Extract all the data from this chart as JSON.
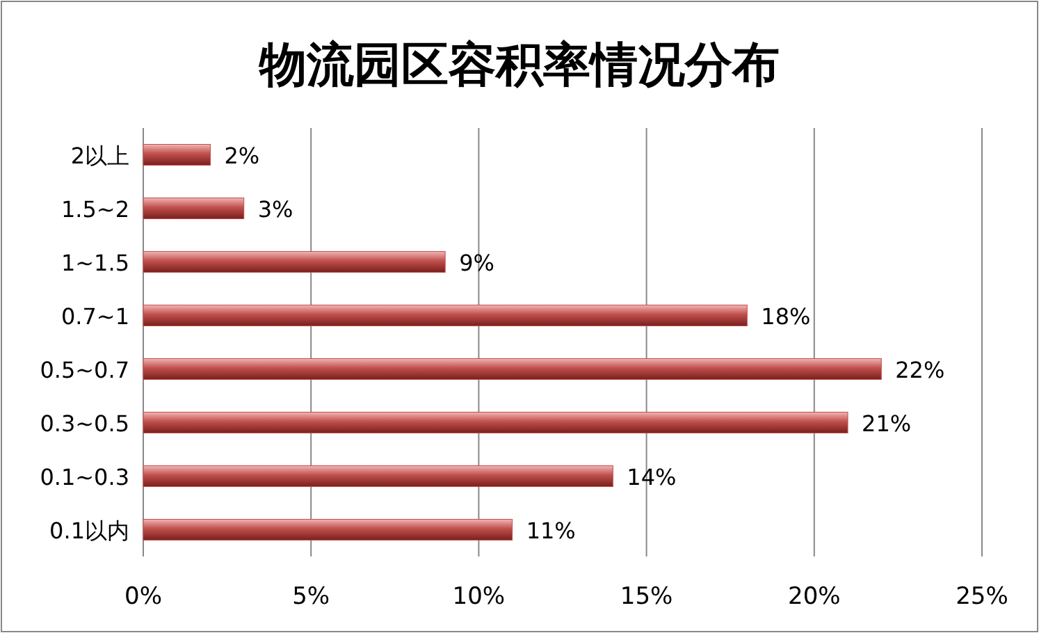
{
  "chart_data": {
    "type": "bar",
    "title": "物流园区容积率情况分布",
    "orientation": "horizontal",
    "categories": [
      "2以上",
      "1.5~2",
      "1~1.5",
      "0.7~1",
      "0.5~0.7",
      "0.3~0.5",
      "0.1~0.3",
      "0.1以内"
    ],
    "values": [
      2,
      3,
      9,
      18,
      22,
      21,
      14,
      11
    ],
    "value_labels": [
      "2%",
      "3%",
      "9%",
      "18%",
      "22%",
      "21%",
      "14%",
      "11%"
    ],
    "color": "#c0504d",
    "xlim": [
      0,
      25
    ],
    "xticks": [
      {
        "value": 0,
        "label": "0%"
      },
      {
        "value": 5,
        "label": "5%"
      },
      {
        "value": 10,
        "label": "10%"
      },
      {
        "value": 15,
        "label": "15%"
      },
      {
        "value": 20,
        "label": "20%"
      },
      {
        "value": 25,
        "label": "25%"
      }
    ],
    "grid": "x"
  }
}
